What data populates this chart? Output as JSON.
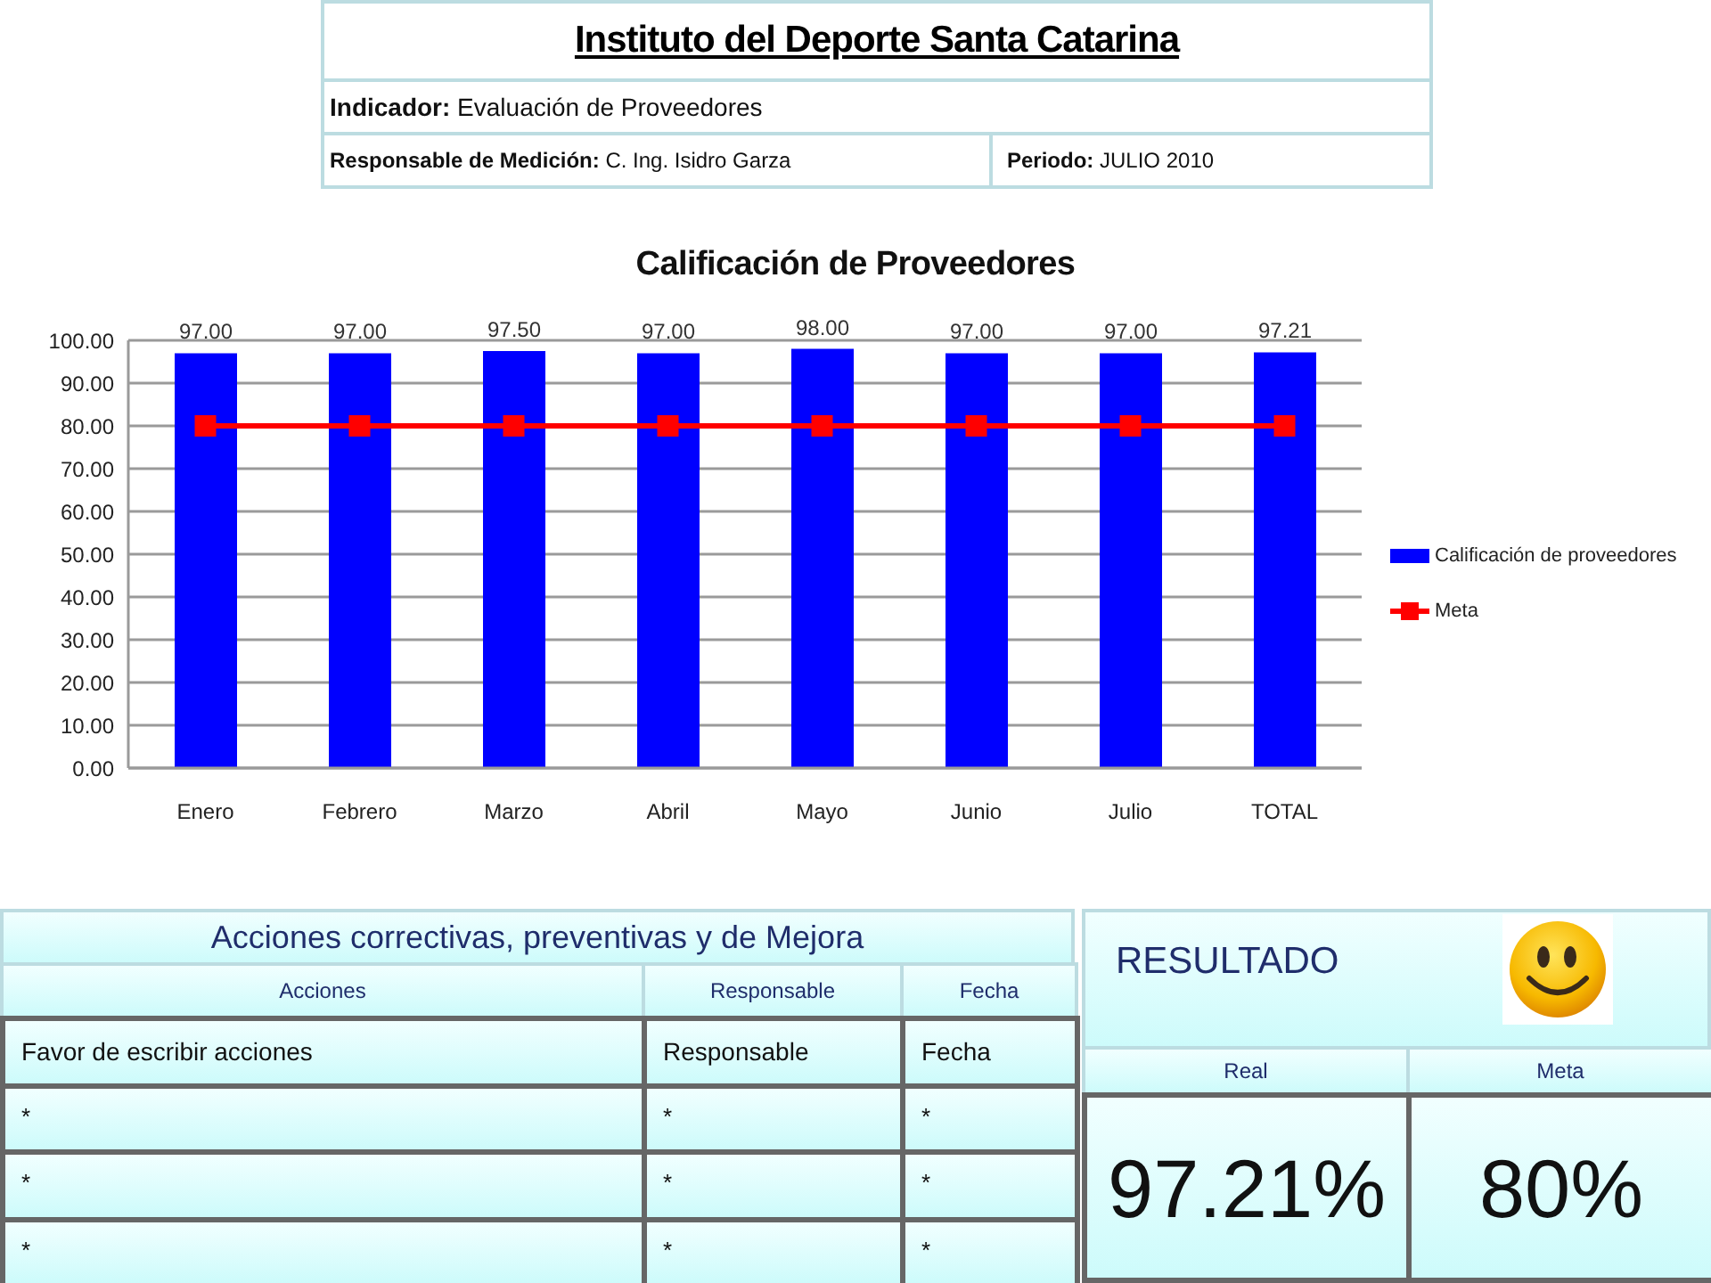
{
  "chart_data": [
    {
      "type": "other",
      "title": "Instituto del Deporte Santa Catarina",
      "annotations": [
        "Indicador: Evaluación de Proveedores",
        "Responsable de Medición: C. Ing. Isidro Garza",
        "Periodo: JULIO 2010"
      ]
    },
    {
      "type": "bar",
      "title": "Calificación de Proveedores",
      "categories": [
        "Enero",
        "Febrero",
        "Marzo",
        "Abril",
        "Mayo",
        "Junio",
        "Julio",
        "TOTAL"
      ],
      "series": [
        {
          "name": "Calificación de proveedores",
          "color": "#0000ff",
          "values": [
            97,
            97,
            97.5,
            97,
            98,
            97,
            97,
            97.21
          ],
          "value_labels": [
            "97.00",
            "97.00",
            "97.50",
            "97.00",
            "98.00",
            "97.00",
            "97.00",
            "97.21"
          ]
        },
        {
          "name": "Meta",
          "type": "line",
          "color": "#ff0000",
          "marker": "square",
          "values": [
            80,
            80,
            80,
            80,
            80,
            80,
            80,
            80
          ]
        }
      ],
      "ylim": [
        0,
        100
      ],
      "yticks": [
        {
          "value": 0,
          "label": "0.00"
        },
        {
          "value": 10,
          "label": "10.00"
        },
        {
          "value": 20,
          "label": "20.00"
        },
        {
          "value": 30,
          "label": "30.00"
        },
        {
          "value": 40,
          "label": "40.00"
        },
        {
          "value": 50,
          "label": "50.00"
        },
        {
          "value": 60,
          "label": "60.00"
        },
        {
          "value": 70,
          "label": "70.00"
        },
        {
          "value": 80,
          "label": "80.00"
        },
        {
          "value": 90,
          "label": "90.00"
        },
        {
          "value": 100,
          "label": "100.00"
        }
      ],
      "grid": "y",
      "legend": "right"
    },
    {
      "type": "other",
      "title": "Acciones correctivas, preventivas y de Mejora",
      "categories": [
        "Acciones",
        "Responsable",
        "Fecha"
      ],
      "annotations": [
        "Favor de escribir acciones",
        "Responsable",
        "Fecha",
        "*",
        "*",
        "*",
        "*",
        "*",
        "*",
        "*",
        "*",
        "*"
      ]
    },
    {
      "type": "other",
      "title": "RESULTADO",
      "categories": [
        "Real",
        "Meta"
      ],
      "annotations": [
        "97.21%",
        "80%"
      ]
    }
  ]
}
